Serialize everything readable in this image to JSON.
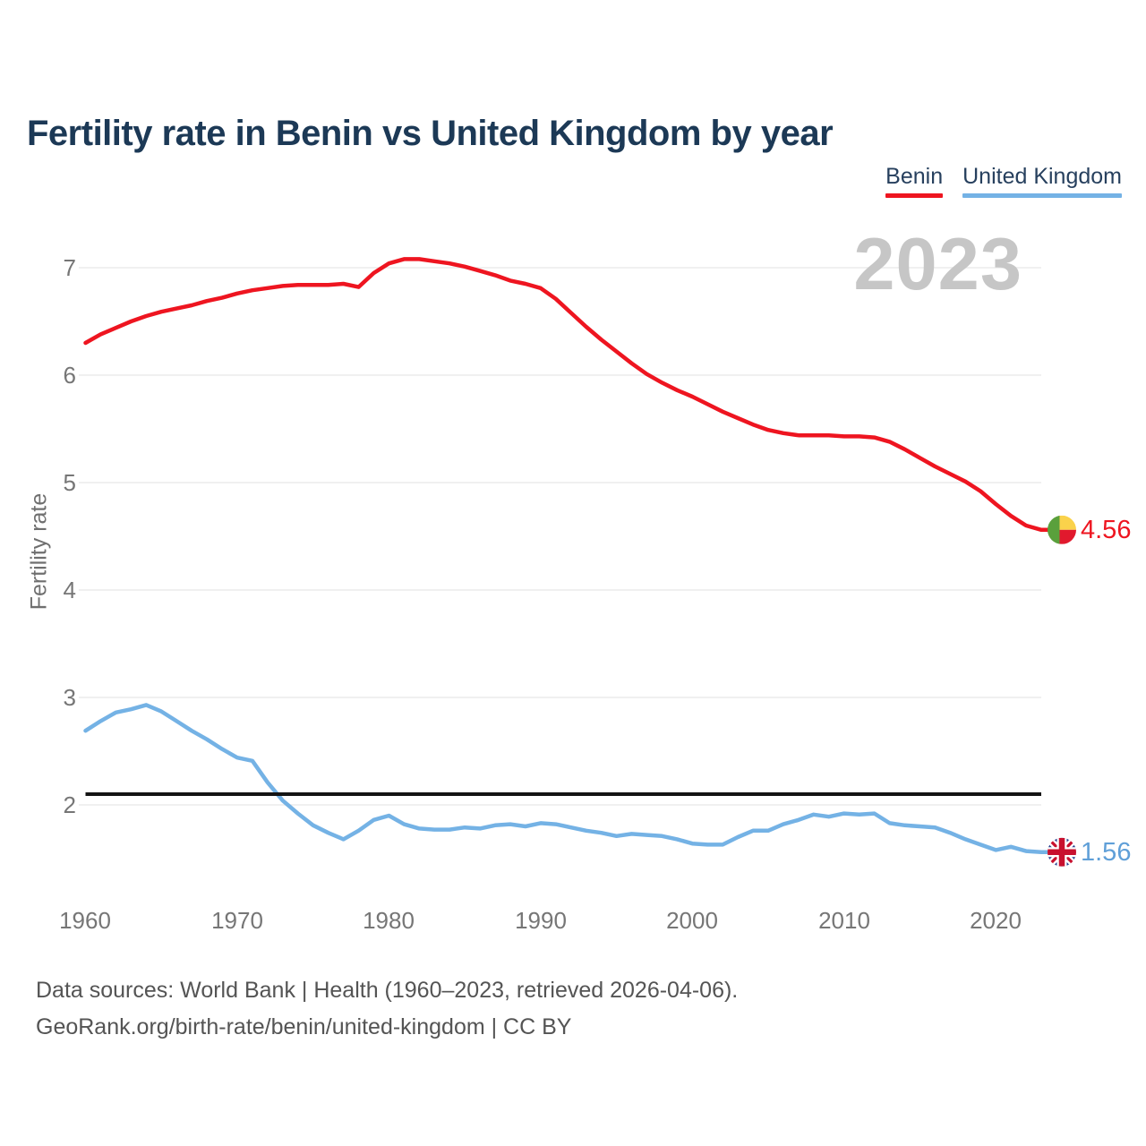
{
  "header": {
    "title": "Fertility rate in Benin vs United Kingdom by year"
  },
  "legend": {
    "items": [
      {
        "label": "Benin",
        "color": "#ee1520"
      },
      {
        "label": "United Kingdom",
        "color": "#74b2e5"
      }
    ]
  },
  "watermark": "2023",
  "y_axis": {
    "label": "Fertility rate",
    "ticks": [
      "7",
      "6",
      "5",
      "4",
      "3",
      "2"
    ]
  },
  "x_axis": {
    "ticks": [
      "1960",
      "1970",
      "1980",
      "1990",
      "2000",
      "2010",
      "2020"
    ]
  },
  "end_labels": {
    "benin": {
      "value": "4.56",
      "flag": "benin-flag"
    },
    "uk": {
      "value": "1.56",
      "flag": "uk-flag"
    }
  },
  "footer": {
    "line1": "Data sources: World Bank | Health (1960–2023, retrieved 2026-04-06).",
    "line2": "GeoRank.org/birth-rate/benin/united-kingdom | CC BY"
  },
  "chart_data": {
    "type": "line",
    "title": "Fertility rate in Benin vs United Kingdom by year",
    "xlabel": "",
    "ylabel": "Fertility rate",
    "xlim": [
      1960,
      2023
    ],
    "ylim": [
      1.3,
      7.4
    ],
    "y_ticks": [
      7,
      6,
      5,
      4,
      3,
      2
    ],
    "grid": true,
    "legend_position": "top-right",
    "x": [
      1960,
      1961,
      1962,
      1963,
      1964,
      1965,
      1966,
      1967,
      1968,
      1969,
      1970,
      1971,
      1972,
      1973,
      1974,
      1975,
      1976,
      1977,
      1978,
      1979,
      1980,
      1981,
      1982,
      1983,
      1984,
      1985,
      1986,
      1987,
      1988,
      1989,
      1990,
      1991,
      1992,
      1993,
      1994,
      1995,
      1996,
      1997,
      1998,
      1999,
      2000,
      2001,
      2002,
      2003,
      2004,
      2005,
      2006,
      2007,
      2008,
      2009,
      2010,
      2011,
      2012,
      2013,
      2014,
      2015,
      2016,
      2017,
      2018,
      2019,
      2020,
      2021,
      2022,
      2023
    ],
    "series": [
      {
        "name": "Benin",
        "color": "#ee1520",
        "end_value": 4.56,
        "values": [
          6.3,
          6.38,
          6.44,
          6.5,
          6.55,
          6.59,
          6.62,
          6.65,
          6.69,
          6.72,
          6.76,
          6.79,
          6.81,
          6.83,
          6.84,
          6.84,
          6.84,
          6.85,
          6.82,
          6.95,
          7.04,
          7.08,
          7.08,
          7.06,
          7.04,
          7.01,
          6.97,
          6.93,
          6.88,
          6.85,
          6.81,
          6.71,
          6.58,
          6.45,
          6.33,
          6.22,
          6.11,
          6.01,
          5.93,
          5.86,
          5.8,
          5.73,
          5.66,
          5.6,
          5.54,
          5.49,
          5.46,
          5.44,
          5.44,
          5.44,
          5.43,
          5.43,
          5.42,
          5.38,
          5.31,
          5.23,
          5.15,
          5.08,
          5.01,
          4.92,
          4.8,
          4.69,
          4.6,
          4.56
        ]
      },
      {
        "name": "United Kingdom",
        "color": "#74b2e5",
        "end_value": 1.56,
        "values": [
          2.69,
          2.78,
          2.86,
          2.89,
          2.93,
          2.87,
          2.78,
          2.69,
          2.61,
          2.52,
          2.44,
          2.41,
          2.21,
          2.04,
          1.92,
          1.81,
          1.74,
          1.68,
          1.76,
          1.86,
          1.9,
          1.82,
          1.78,
          1.77,
          1.77,
          1.79,
          1.78,
          1.81,
          1.82,
          1.8,
          1.83,
          1.82,
          1.79,
          1.76,
          1.74,
          1.71,
          1.73,
          1.72,
          1.71,
          1.68,
          1.64,
          1.63,
          1.63,
          1.7,
          1.76,
          1.76,
          1.82,
          1.86,
          1.91,
          1.89,
          1.92,
          1.91,
          1.92,
          1.83,
          1.81,
          1.8,
          1.79,
          1.74,
          1.68,
          1.63,
          1.58,
          1.61,
          1.57,
          1.56
        ]
      }
    ],
    "reference_line": {
      "value": 2.1,
      "color": "#141414"
    },
    "colors": {
      "gridline": "#ebebeb",
      "benin_flag_green": "#5aa03c",
      "benin_flag_yellow": "#fad24b",
      "benin_flag_red": "#e1192d",
      "uk_flag_blue": "#253e8e",
      "uk_flag_red": "#c8102e"
    }
  }
}
